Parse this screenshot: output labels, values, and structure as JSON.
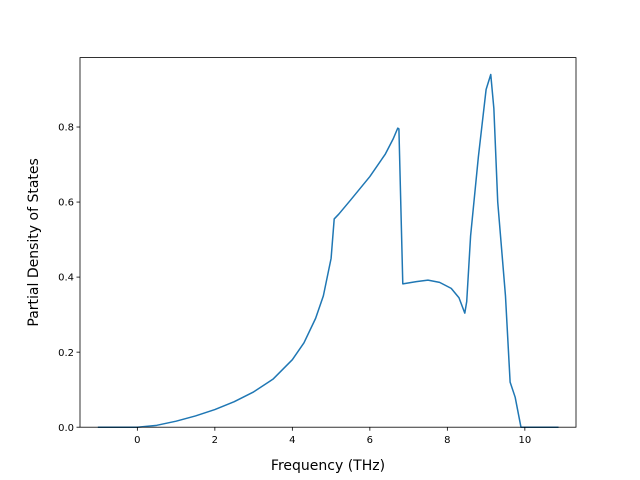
{
  "chart_data": {
    "type": "line",
    "title": "",
    "xlabel": "Frequency (THz)",
    "ylabel": "Partial Density of States",
    "xlim": [
      -1.48,
      11.32
    ],
    "ylim": [
      0.0,
      0.985
    ],
    "xticks": [
      0,
      2,
      4,
      6,
      8,
      10
    ],
    "yticks": [
      0.0,
      0.2,
      0.4,
      0.6,
      0.8
    ],
    "xtick_labels": [
      "0",
      "2",
      "4",
      "6",
      "8",
      "10"
    ],
    "ytick_labels": [
      "0.0",
      "0.2",
      "0.4",
      "0.6",
      "0.8"
    ],
    "grid": false,
    "legend": "none",
    "color": "#1f77b4",
    "series": [
      {
        "x": [
          -1.0,
          0.0,
          0.5,
          1.0,
          1.5,
          2.0,
          2.5,
          3.0,
          3.5,
          4.0,
          4.3,
          4.6,
          4.8,
          5.0,
          5.08,
          5.2,
          5.5,
          6.0,
          6.4,
          6.6,
          6.72,
          6.75,
          6.85,
          7.2,
          7.5,
          7.8,
          8.1,
          8.3,
          8.45,
          8.5,
          8.6,
          8.8,
          9.0,
          9.12,
          9.2,
          9.3,
          9.5,
          9.62,
          9.75,
          9.9,
          10.0,
          10.85
        ],
        "y": [
          0.0,
          0.0,
          0.005,
          0.016,
          0.03,
          0.047,
          0.068,
          0.094,
          0.128,
          0.18,
          0.225,
          0.29,
          0.35,
          0.45,
          0.555,
          0.568,
          0.605,
          0.668,
          0.728,
          0.768,
          0.797,
          0.795,
          0.382,
          0.388,
          0.392,
          0.386,
          0.37,
          0.345,
          0.304,
          0.335,
          0.51,
          0.72,
          0.9,
          0.94,
          0.85,
          0.6,
          0.35,
          0.12,
          0.08,
          0.0,
          0.0,
          0.0
        ]
      }
    ]
  }
}
